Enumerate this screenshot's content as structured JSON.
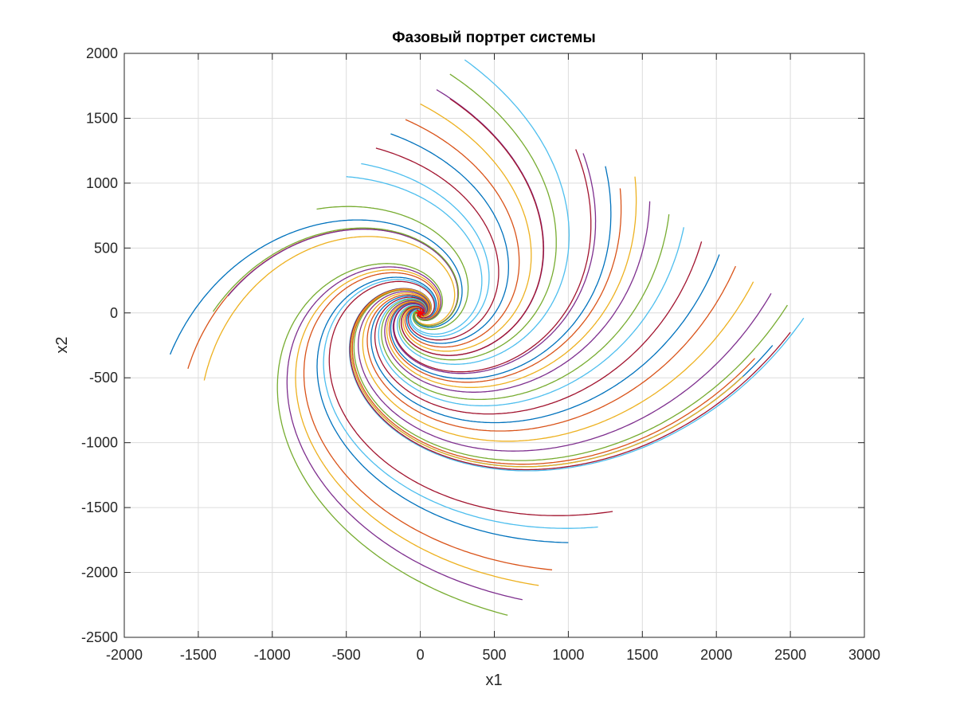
{
  "chart_data": {
    "type": "line",
    "title": "Фазовый портрет системы",
    "xlabel": "x1",
    "ylabel": "x2",
    "xlim": [
      -2000,
      3000
    ],
    "ylim": [
      -2500,
      2000
    ],
    "xticks": [
      -2000,
      -1500,
      -1000,
      -500,
      0,
      500,
      1000,
      1500,
      2000,
      2500,
      3000
    ],
    "yticks": [
      -2500,
      -2000,
      -1500,
      -1000,
      -500,
      0,
      500,
      1000,
      1500,
      2000
    ],
    "xtick_labels": [
      "-2000",
      "-1500",
      "-1000",
      "-500",
      "0",
      "500",
      "1000",
      "1500",
      "2000",
      "2500",
      "3000"
    ],
    "ytick_labels": [
      "-2500",
      "-2000",
      "-1500",
      "-1000",
      "-500",
      "0",
      "500",
      "1000",
      "1500",
      "2000"
    ],
    "grid": true,
    "legend": "none",
    "equilibrium_point": {
      "x": 0,
      "y": 0,
      "marker": "*",
      "color": "#ff0000"
    },
    "series_colors": [
      "#0072bd",
      "#d95319",
      "#edb120",
      "#7e2f8e",
      "#77ac30",
      "#4dbeee",
      "#a2142f"
    ],
    "series": [
      {
        "start": [
          -1690,
          -320
        ]
      },
      {
        "start": [
          -1570,
          -430
        ]
      },
      {
        "start": [
          -1460,
          -520
        ]
      },
      {
        "start": [
          -1300,
          130
        ]
      },
      {
        "start": [
          -1400,
          10
        ]
      },
      {
        "start": [
          -400,
          1150
        ]
      },
      {
        "start": [
          -300,
          1270
        ]
      },
      {
        "start": [
          -200,
          1380
        ]
      },
      {
        "start": [
          -100,
          1490
        ]
      },
      {
        "start": [
          0,
          1610
        ]
      },
      {
        "start": [
          110,
          1720
        ]
      },
      {
        "start": [
          200,
          1840
        ]
      },
      {
        "start": [
          300,
          1950
        ]
      },
      {
        "start": [
          1050,
          1260
        ]
      },
      {
        "start": [
          1250,
          1130
        ]
      },
      {
        "start": [
          1350,
          960
        ]
      },
      {
        "start": [
          1450,
          1050
        ]
      },
      {
        "start": [
          1550,
          860
        ]
      },
      {
        "start": [
          1680,
          760
        ]
      },
      {
        "start": [
          1780,
          660
        ]
      },
      {
        "start": [
          1900,
          550
        ]
      },
      {
        "start": [
          2020,
          450
        ]
      },
      {
        "start": [
          2130,
          360
        ]
      },
      {
        "start": [
          2250,
          240
        ]
      },
      {
        "start": [
          2370,
          150
        ]
      },
      {
        "start": [
          2480,
          60
        ]
      },
      {
        "start": [
          2590,
          -40
        ]
      },
      {
        "start": [
          2500,
          -150
        ]
      },
      {
        "start": [
          2380,
          -250
        ]
      },
      {
        "start": [
          2260,
          -350
        ]
      },
      {
        "start": [
          2180,
          -490
        ]
      },
      {
        "start": [
          1100,
          1230
        ]
      },
      {
        "start": [
          -700,
          800
        ]
      },
      {
        "start": [
          -500,
          1050
        ]
      },
      {
        "start": [
          200,
          1650
        ]
      },
      {
        "start": [
          1000,
          -1770
        ]
      },
      {
        "start": [
          890,
          -1980
        ]
      },
      {
        "start": [
          800,
          -2100
        ]
      },
      {
        "start": [
          690,
          -2210
        ]
      },
      {
        "start": [
          590,
          -2330
        ]
      },
      {
        "start": [
          1200,
          -1650
        ]
      },
      {
        "start": [
          1300,
          -1530
        ]
      }
    ]
  }
}
